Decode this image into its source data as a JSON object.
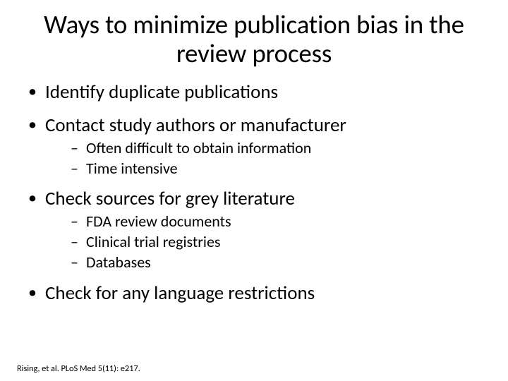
{
  "colors": {
    "background": "#ffffff",
    "text": "#000000"
  },
  "typography": {
    "family": "Calibri",
    "title_fontsize": 37,
    "bullet_fontsize": 27,
    "subbullet_fontsize": 22,
    "citation_fontsize": 12.5
  },
  "title": "Ways to minimize publication bias in the review process",
  "bullets": [
    {
      "text": "Identify duplicate publications",
      "sub": []
    },
    {
      "text": "Contact study authors or manufacturer",
      "sub": [
        "Often difficult to obtain information",
        "Time intensive"
      ]
    },
    {
      "text": "Check sources for grey literature",
      "sub": [
        "FDA review documents",
        "Clinical trial registries",
        "Databases"
      ]
    },
    {
      "text": "Check for any language restrictions",
      "sub": []
    }
  ],
  "citation": "Rising, et al. PLoS Med 5(11): e217."
}
